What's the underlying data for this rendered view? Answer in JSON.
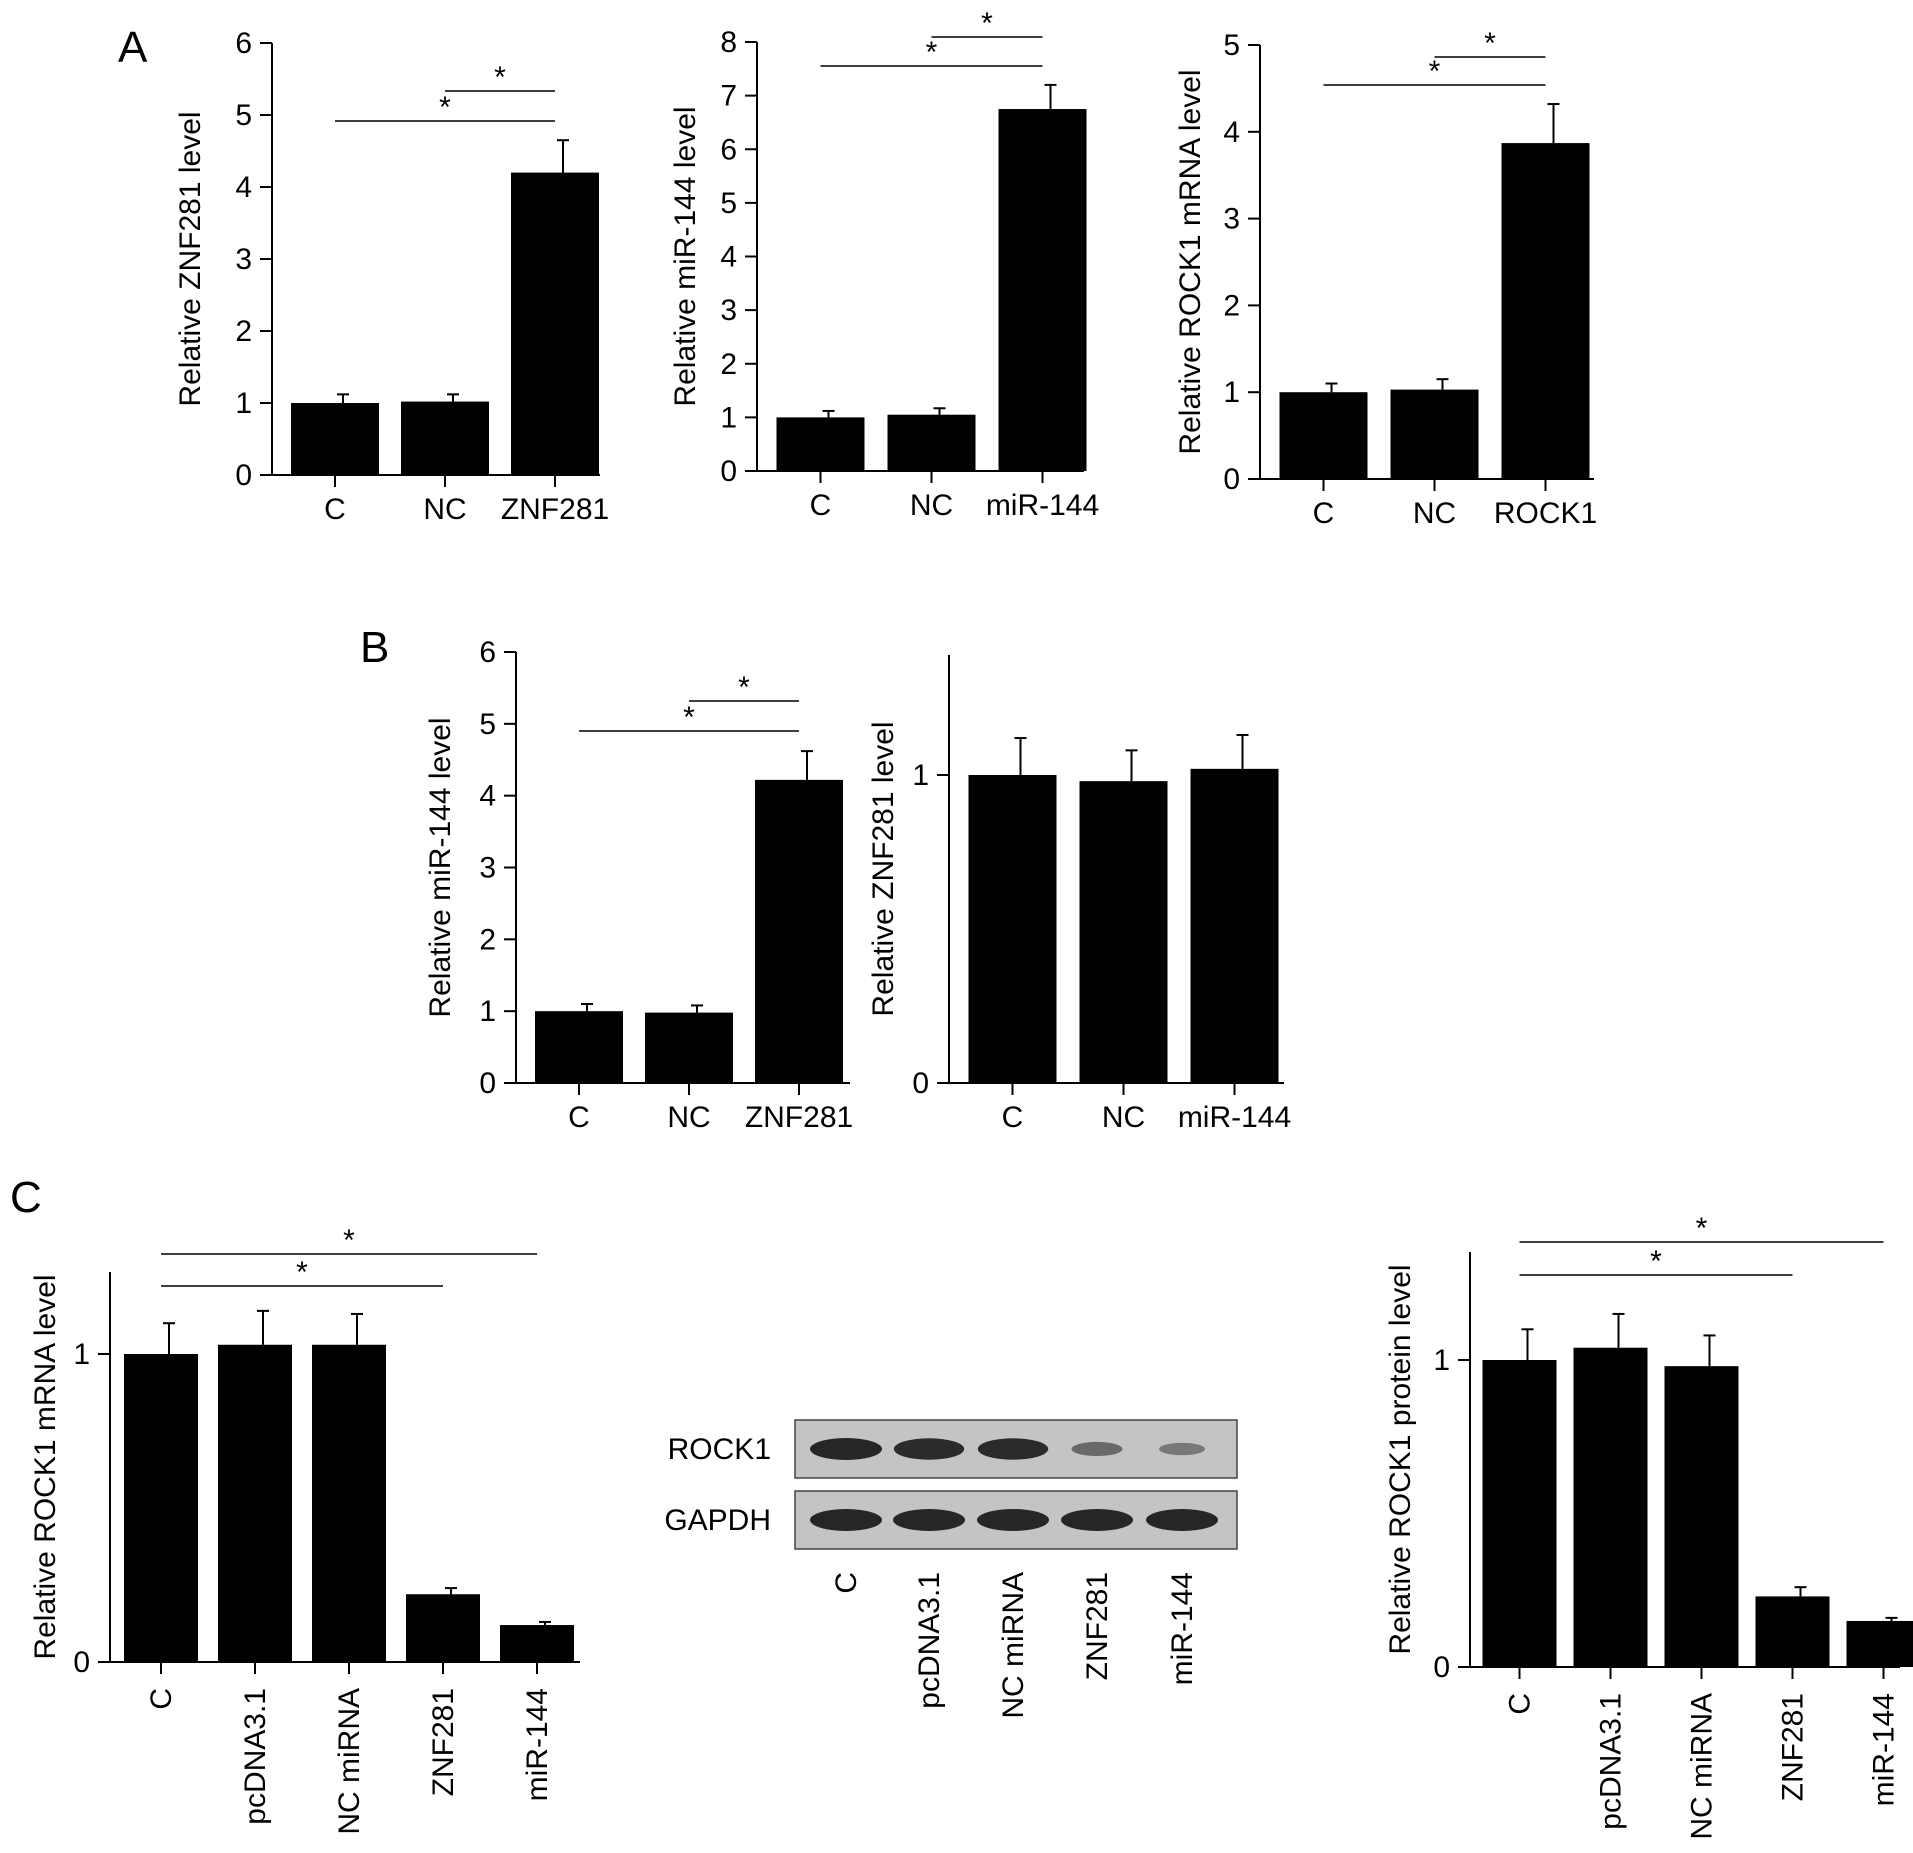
{
  "panels": [
    {
      "letter": "A"
    },
    {
      "letter": "B"
    },
    {
      "letter": "C"
    }
  ],
  "chart_data": [
    {
      "type": "bar",
      "panel": "A",
      "ylabel": "Relative ZNF281 level",
      "categories": [
        "C",
        "NC",
        "ZNF281"
      ],
      "values": [
        1.0,
        1.02,
        4.2
      ],
      "errors": [
        0.12,
        0.1,
        0.45
      ],
      "ylim": [
        0,
        6
      ],
      "yticks": [
        0,
        1,
        2,
        3,
        4,
        5,
        6
      ],
      "significance": [
        {
          "from": 0,
          "to": 2,
          "label": "*"
        },
        {
          "from": 1,
          "to": 2,
          "label": "*"
        }
      ]
    },
    {
      "type": "bar",
      "panel": "A",
      "ylabel": "Relative miR-144 level",
      "categories": [
        "C",
        "NC",
        "miR-144"
      ],
      "values": [
        1.0,
        1.05,
        6.75
      ],
      "errors": [
        0.12,
        0.12,
        0.45
      ],
      "ylim": [
        0,
        8
      ],
      "yticks": [
        0,
        1,
        2,
        3,
        4,
        5,
        6,
        7,
        8
      ],
      "significance": [
        {
          "from": 0,
          "to": 2,
          "label": "*"
        },
        {
          "from": 1,
          "to": 2,
          "label": "*"
        }
      ]
    },
    {
      "type": "bar",
      "panel": "A",
      "ylabel": "Relative ROCK1 mRNA level",
      "categories": [
        "C",
        "NC",
        "ROCK1"
      ],
      "values": [
        1.0,
        1.03,
        3.87
      ],
      "errors": [
        0.1,
        0.12,
        0.45
      ],
      "ylim": [
        0,
        5
      ],
      "yticks": [
        0,
        1,
        2,
        3,
        4,
        5
      ],
      "significance": [
        {
          "from": 0,
          "to": 2,
          "label": "*"
        },
        {
          "from": 1,
          "to": 2,
          "label": "*"
        }
      ]
    },
    {
      "type": "bar",
      "panel": "B",
      "ylabel": "Relative miR-144 level",
      "categories": [
        "C",
        "NC",
        "ZNF281"
      ],
      "values": [
        1.0,
        0.98,
        4.22
      ],
      "errors": [
        0.1,
        0.1,
        0.4
      ],
      "ylim": [
        0,
        6
      ],
      "yticks": [
        0,
        1,
        2,
        3,
        4,
        5,
        6
      ],
      "significance": [
        {
          "from": 0,
          "to": 2,
          "label": "*"
        },
        {
          "from": 1,
          "to": 2,
          "label": "*"
        }
      ]
    },
    {
      "type": "bar",
      "panel": "B",
      "ylabel": "Relative ZNF281 level",
      "categories": [
        "C",
        "NC",
        "miR-144"
      ],
      "values": [
        1.0,
        0.98,
        1.02
      ],
      "errors": [
        0.12,
        0.1,
        0.11
      ],
      "ylim": [
        0,
        1.4
      ],
      "yticks": [
        0,
        1
      ],
      "significance": []
    },
    {
      "type": "bar",
      "panel": "C",
      "ylabel": "Relative ROCK1 mRNA level",
      "categories": [
        "C",
        "pcDNA3.1",
        "NC miRNA",
        "ZNF281",
        "miR-144"
      ],
      "values": [
        1.0,
        1.03,
        1.03,
        0.22,
        0.12
      ],
      "errors": [
        0.1,
        0.11,
        0.1,
        0.02,
        0.01
      ],
      "ylim": [
        0,
        1.27
      ],
      "yticks": [
        0,
        1
      ],
      "significance": [
        {
          "from": 0,
          "to": 3,
          "label": "*"
        },
        {
          "from": 0,
          "to": 4,
          "label": "*"
        }
      ]
    },
    {
      "type": "bar",
      "panel": "C",
      "ylabel": "Relative ROCK1 protein level",
      "categories": [
        "C",
        "pcDNA3.1",
        "NC miRNA",
        "ZNF281",
        "miR-144"
      ],
      "values": [
        1.0,
        1.04,
        0.98,
        0.23,
        0.15
      ],
      "errors": [
        0.1,
        0.11,
        0.1,
        0.03,
        0.01
      ],
      "ylim": [
        0,
        1.35
      ],
      "yticks": [
        0,
        1
      ],
      "significance": [
        {
          "from": 0,
          "to": 3,
          "label": "*"
        },
        {
          "from": 0,
          "to": 4,
          "label": "*"
        }
      ]
    }
  ],
  "western_blot": {
    "rows": [
      "ROCK1",
      "GAPDH"
    ],
    "lanes": [
      "C",
      "pcDNA3.1",
      "NC miRNA",
      "ZNF281",
      "miR-144"
    ],
    "band_intensity": {
      "ROCK1": [
        1.0,
        0.95,
        0.95,
        0.35,
        0.2
      ],
      "GAPDH": [
        1.0,
        1.0,
        1.0,
        1.0,
        1.0
      ]
    },
    "colors": {
      "background": "#c4c4c4",
      "band": "#262626"
    }
  }
}
